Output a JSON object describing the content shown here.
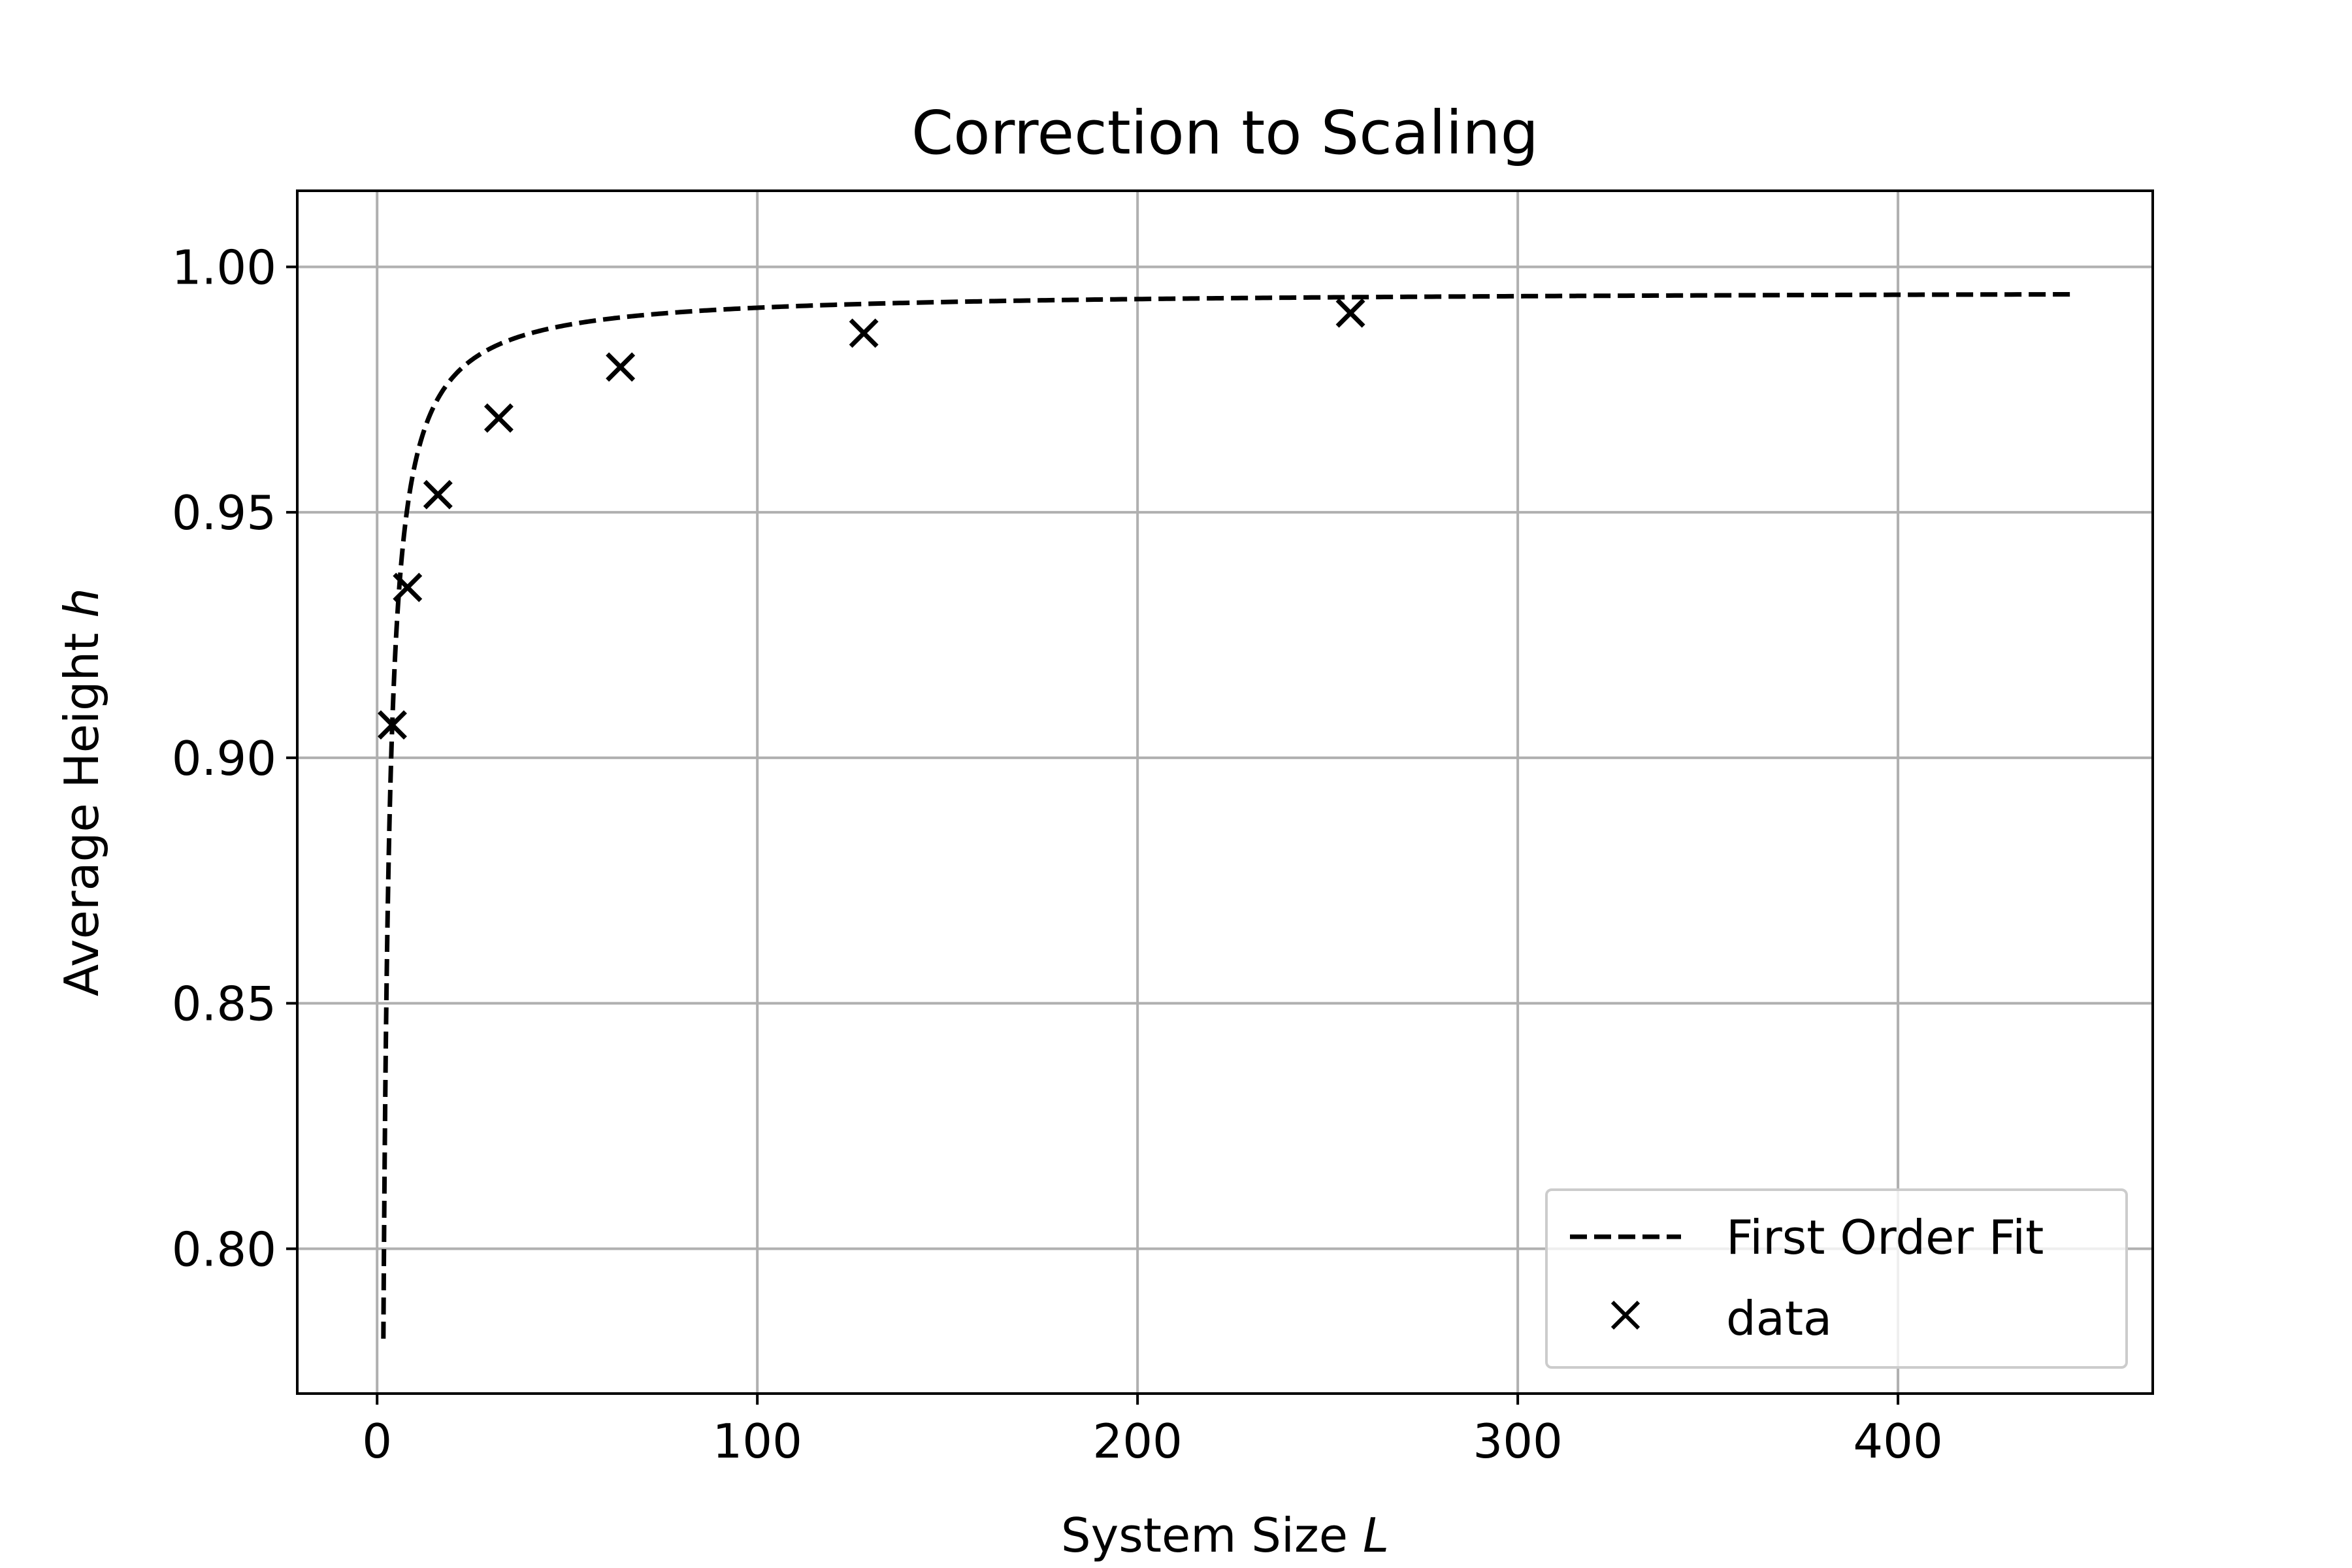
{
  "chart_data": {
    "type": "line",
    "title": "Correction to Scaling",
    "xlabel": "System Size",
    "xlabel_var": "L",
    "ylabel": "Average Height",
    "ylabel_var": "h",
    "xlim": [
      -21,
      467
    ],
    "ylim": [
      0.7705,
      1.0155
    ],
    "xticks": [
      0,
      100,
      200,
      300,
      400
    ],
    "xtick_labels": [
      "0",
      "100",
      "200",
      "300",
      "400"
    ],
    "yticks": [
      0.8,
      0.85,
      0.9,
      0.95,
      1.0
    ],
    "ytick_labels": [
      "0.80",
      "0.85",
      "0.90",
      "0.95",
      "1.00"
    ],
    "grid": true,
    "legend_position": "lower-right",
    "series": [
      {
        "name": "First Order Fit",
        "kind": "line",
        "style": "dashed",
        "color": "#000000",
        "function": "h(L) = a - b / L",
        "params": {
          "a": 0.9952,
          "b": 0.3523
        },
        "x_range": [
          1.65,
          446
        ]
      },
      {
        "name": "data",
        "kind": "scatter",
        "marker": "x",
        "color": "#000000",
        "x": [
          4,
          8,
          16,
          32,
          64,
          128,
          256
        ],
        "y": [
          0.9067,
          0.9347,
          0.9536,
          0.9692,
          0.9796,
          0.9865,
          0.9906
        ]
      }
    ]
  }
}
